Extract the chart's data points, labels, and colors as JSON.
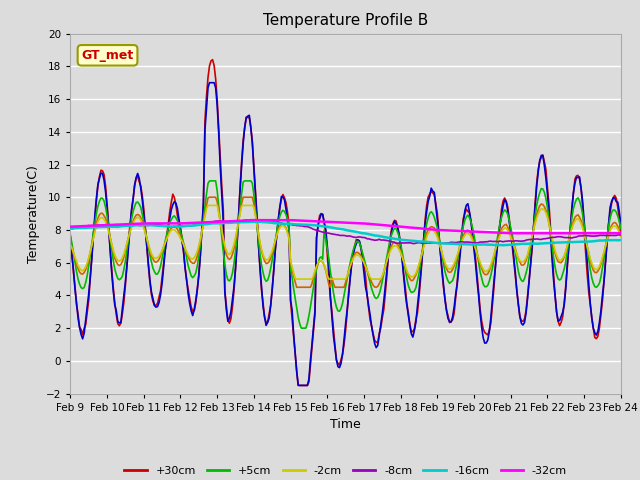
{
  "title": "Temperature Profile B",
  "xlabel": "Time",
  "ylabel": "Temperature(C)",
  "ylim": [
    -2,
    20
  ],
  "xlim": [
    0,
    360
  ],
  "annotation": "GT_met",
  "background_color": "#dcdcdc",
  "plot_bg_color": "#dcdcdc",
  "grid_color": "#ffffff",
  "series": {
    "+30cm": {
      "color": "#cc0000",
      "lw": 1.2
    },
    "+15cm": {
      "color": "#0000cc",
      "lw": 1.2
    },
    "+5cm": {
      "color": "#00bb00",
      "lw": 1.2
    },
    "0cm": {
      "color": "#cc6600",
      "lw": 1.2
    },
    "-2cm": {
      "color": "#cccc00",
      "lw": 1.2
    },
    "-8cm": {
      "color": "#9900bb",
      "lw": 1.2
    },
    "-16cm": {
      "color": "#00cccc",
      "lw": 1.8
    },
    "-32cm": {
      "color": "#ff00ff",
      "lw": 1.8
    }
  },
  "xtick_labels": [
    "Feb 9",
    "Feb 10",
    "Feb 11",
    "Feb 12",
    "Feb 13",
    "Feb 14",
    "Feb 15",
    "Feb 16",
    "Feb 17",
    "Feb 18",
    "Feb 19",
    "Feb 20",
    "Feb 21",
    "Feb 22",
    "Feb 23",
    "Feb 24"
  ],
  "xtick_positions": [
    0,
    24,
    48,
    72,
    96,
    120,
    144,
    168,
    192,
    216,
    240,
    264,
    288,
    312,
    336,
    360
  ],
  "figsize": [
    6.4,
    4.8
  ],
  "dpi": 100
}
